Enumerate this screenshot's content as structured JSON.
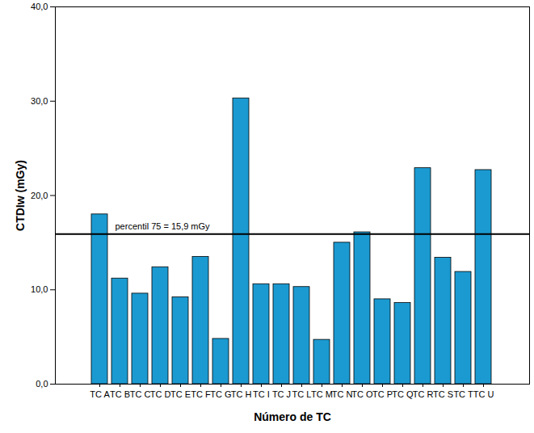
{
  "chart_data": {
    "type": "bar",
    "x_label": "Número de TC",
    "y_label": "CTDIw (mGy)",
    "categories": [
      "TC A",
      "TC B",
      "TC C",
      "TC D",
      "TC E",
      "TC F",
      "TC G",
      "TC H",
      "TC I",
      "TC J",
      "TC L",
      "TC M",
      "TC N",
      "TC O",
      "TC P",
      "TC Q",
      "TC R",
      "TC S",
      "TC T",
      "TC U"
    ],
    "values": [
      18.0,
      11.2,
      9.6,
      12.4,
      9.2,
      13.5,
      4.8,
      30.3,
      10.6,
      10.6,
      10.3,
      4.7,
      15.0,
      16.1,
      9.0,
      8.6,
      22.9,
      13.4,
      11.9,
      22.7
    ],
    "color": "#1b9ad1",
    "ylim": [
      0,
      40
    ],
    "yticks": [
      {
        "value": 0,
        "label": "0,0"
      },
      {
        "value": 10,
        "label": "10,0"
      },
      {
        "value": 20,
        "label": "20,0"
      },
      {
        "value": 30,
        "label": "30,0"
      },
      {
        "value": 40,
        "label": "40,0"
      }
    ],
    "reference_line": {
      "value": 15.9,
      "label": "percentil 75 = 15,9 mGy"
    },
    "grid": false
  }
}
